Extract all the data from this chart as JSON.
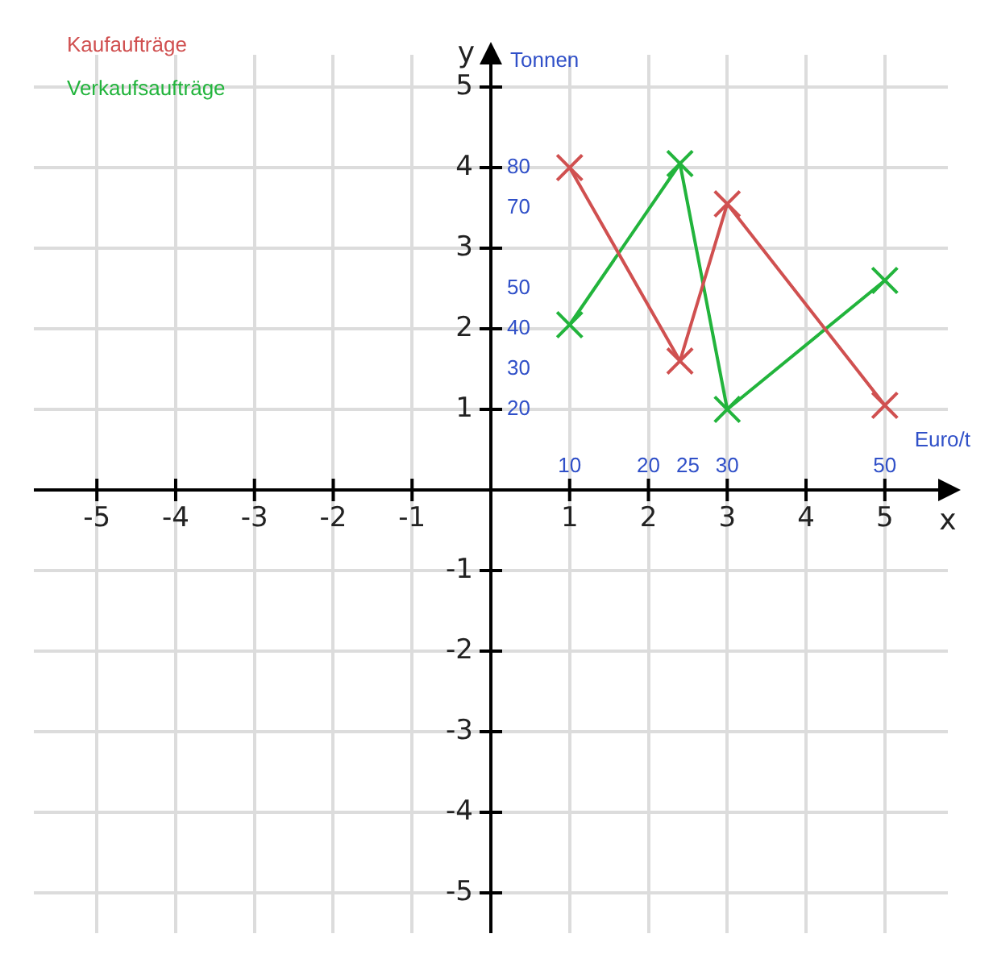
{
  "chart_data": {
    "type": "line",
    "x2label": "Euro/t",
    "y2label": "Tonnen",
    "series": [
      {
        "name": "Kaufaufträge",
        "color": "#d05050",
        "x": [
          1,
          2.4,
          3,
          5
        ],
        "values": [
          4,
          1.6,
          3.55,
          1.05
        ]
      },
      {
        "name": "Verkaufsaufträge",
        "color": "#22b43c",
        "x": [
          1,
          2.4,
          3,
          5
        ],
        "values": [
          2.05,
          4.05,
          1.0,
          2.6
        ]
      }
    ],
    "xlim": [
      -5.8,
      5.8
    ],
    "ylim": [
      -5.5,
      5.4
    ],
    "xticks": [
      -5,
      -4,
      -3,
      -2,
      -1,
      1,
      2,
      3,
      4,
      5
    ],
    "yticks": [
      -5,
      -4,
      -3,
      -2,
      -1,
      1,
      2,
      3,
      4,
      5
    ],
    "xlabel": "x",
    "ylabel": "y",
    "y2lim": [
      -110,
      108
    ],
    "y2ticks": [
      20,
      30,
      40,
      50,
      70,
      80
    ],
    "x2lim": [
      -58,
      58
    ],
    "x2ticks": [
      10,
      20,
      25,
      30,
      50
    ],
    "grid": true,
    "legend": "top left",
    "marker": "cross",
    "line_style": "solid"
  }
}
